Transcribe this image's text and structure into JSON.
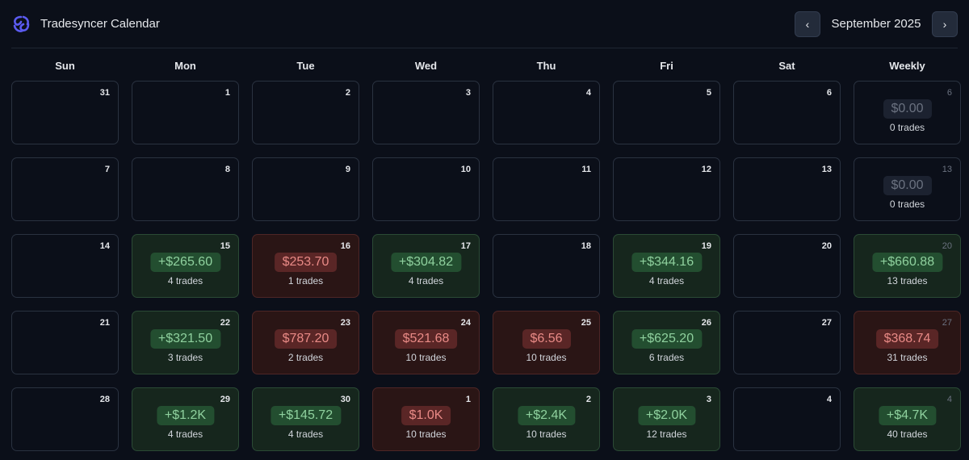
{
  "app": {
    "title": "Tradesyncer Calendar",
    "logo_icon": "tradesyncer-logo-icon"
  },
  "nav": {
    "prev_icon": "chevron-left-icon",
    "prev_label": "‹",
    "next_icon": "chevron-right-icon",
    "next_label": "›",
    "month": "September 2025"
  },
  "weekdays": [
    "Sun",
    "Mon",
    "Tue",
    "Wed",
    "Thu",
    "Fri",
    "Sat",
    "Weekly"
  ],
  "colors": {
    "profit": "#8fd19e",
    "loss": "#e98a86",
    "background": "#0b0f19"
  },
  "weeks": [
    [
      {
        "day": "31"
      },
      {
        "day": "1"
      },
      {
        "day": "2"
      },
      {
        "day": "3"
      },
      {
        "day": "4"
      },
      {
        "day": "5"
      },
      {
        "day": "6"
      },
      {
        "day": "6",
        "weekly": true,
        "pnl": "$0.00",
        "trades": "0 trades",
        "status": "zero"
      }
    ],
    [
      {
        "day": "7"
      },
      {
        "day": "8"
      },
      {
        "day": "9"
      },
      {
        "day": "10"
      },
      {
        "day": "11"
      },
      {
        "day": "12"
      },
      {
        "day": "13"
      },
      {
        "day": "13",
        "weekly": true,
        "pnl": "$0.00",
        "trades": "0 trades",
        "status": "zero"
      }
    ],
    [
      {
        "day": "14"
      },
      {
        "day": "15",
        "pnl": "+$265.60",
        "trades": "4 trades",
        "status": "pos"
      },
      {
        "day": "16",
        "pnl": "$253.70",
        "trades": "1 trades",
        "status": "neg"
      },
      {
        "day": "17",
        "pnl": "+$304.82",
        "trades": "4 trades",
        "status": "pos"
      },
      {
        "day": "18"
      },
      {
        "day": "19",
        "pnl": "+$344.16",
        "trades": "4 trades",
        "status": "pos"
      },
      {
        "day": "20"
      },
      {
        "day": "20",
        "weekly": true,
        "pnl": "+$660.88",
        "trades": "13 trades",
        "status": "pos"
      }
    ],
    [
      {
        "day": "21"
      },
      {
        "day": "22",
        "pnl": "+$321.50",
        "trades": "3 trades",
        "status": "pos"
      },
      {
        "day": "23",
        "pnl": "$787.20",
        "trades": "2 trades",
        "status": "neg"
      },
      {
        "day": "24",
        "pnl": "$521.68",
        "trades": "10 trades",
        "status": "neg"
      },
      {
        "day": "25",
        "pnl": "$6.56",
        "trades": "10 trades",
        "status": "neg"
      },
      {
        "day": "26",
        "pnl": "+$625.20",
        "trades": "6 trades",
        "status": "pos"
      },
      {
        "day": "27"
      },
      {
        "day": "27",
        "weekly": true,
        "pnl": "$368.74",
        "trades": "31 trades",
        "status": "neg"
      }
    ],
    [
      {
        "day": "28"
      },
      {
        "day": "29",
        "pnl": "+$1.2K",
        "trades": "4 trades",
        "status": "pos"
      },
      {
        "day": "30",
        "pnl": "+$145.72",
        "trades": "4 trades",
        "status": "pos"
      },
      {
        "day": "1",
        "pnl": "$1.0K",
        "trades": "10 trades",
        "status": "neg"
      },
      {
        "day": "2",
        "pnl": "+$2.4K",
        "trades": "10 trades",
        "status": "pos"
      },
      {
        "day": "3",
        "pnl": "+$2.0K",
        "trades": "12 trades",
        "status": "pos"
      },
      {
        "day": "4"
      },
      {
        "day": "4",
        "weekly": true,
        "pnl": "+$4.7K",
        "trades": "40 trades",
        "status": "pos"
      }
    ]
  ]
}
